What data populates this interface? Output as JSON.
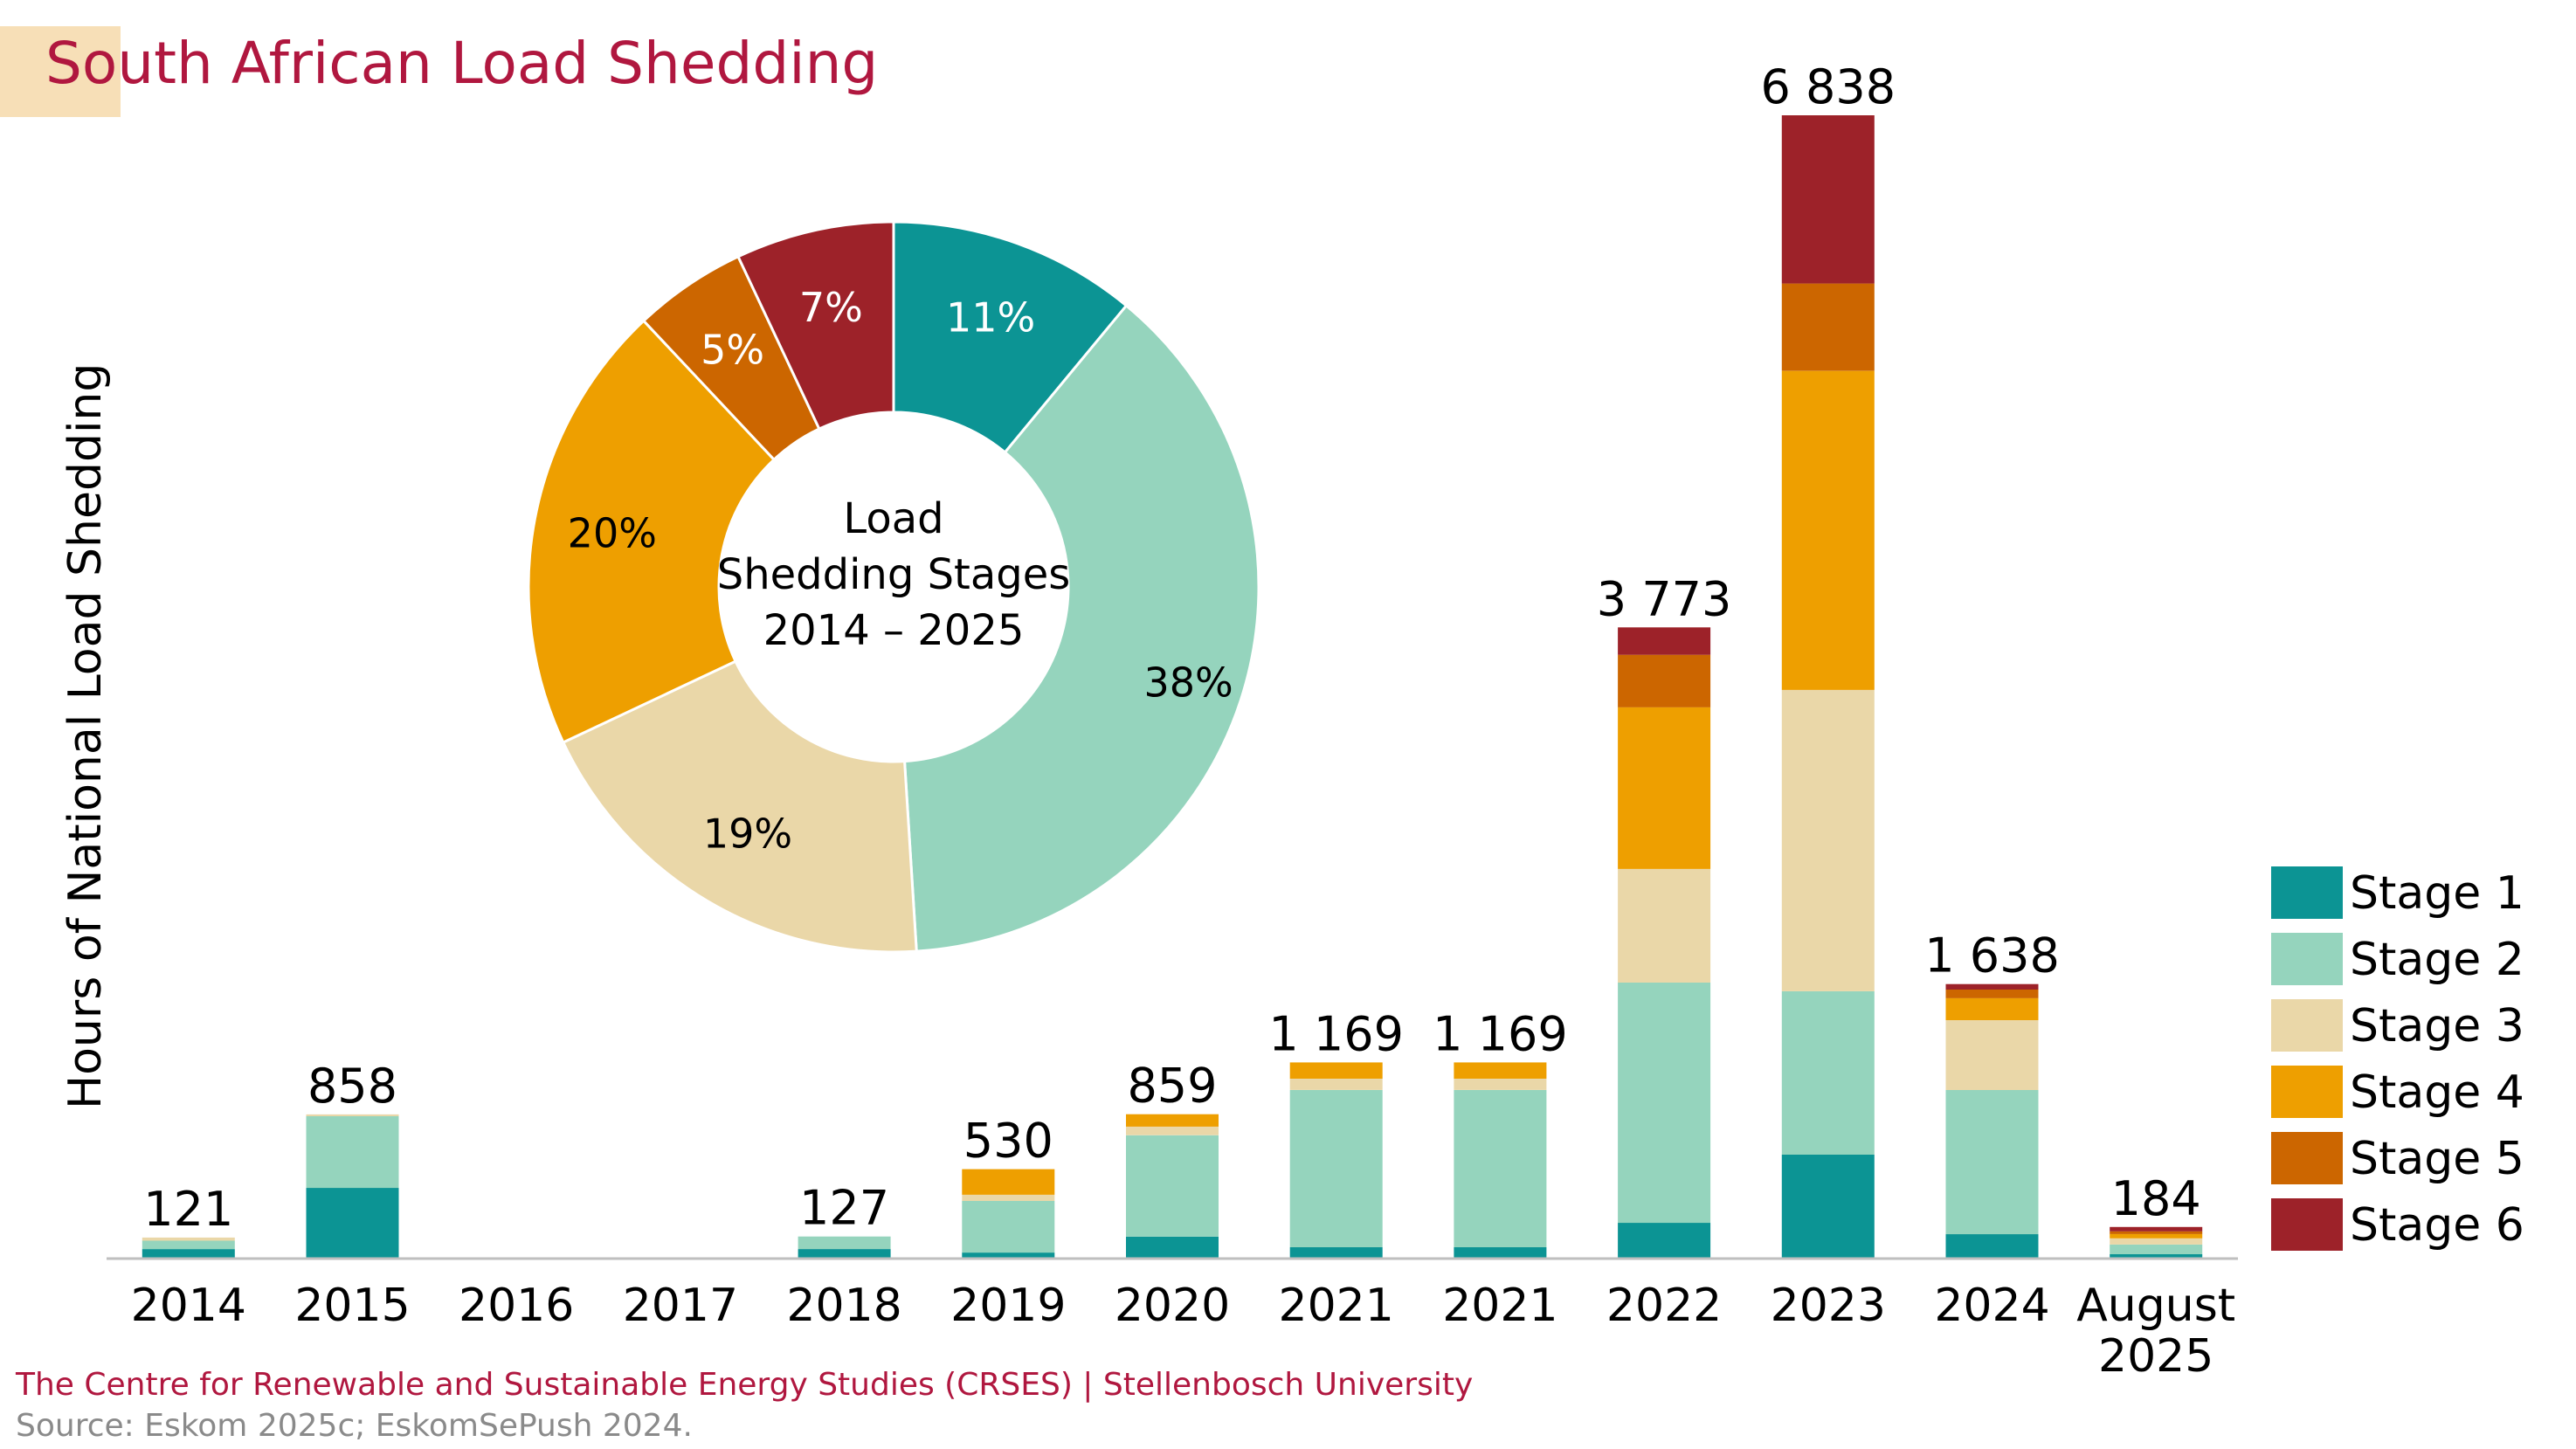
{
  "header": {
    "title": "South African Load Shedding"
  },
  "footer": {
    "credit": "The Centre for Renewable and Sustainable Energy Studies (CRSES) | Stellenbosch University",
    "source": "Source: Eskom 2025c; EskomSePush 2024."
  },
  "colors": {
    "title": "#b0173f",
    "stage1": "#0c9494",
    "stage2": "#95d4bd",
    "stage3": "#ead7a8",
    "stage4": "#ee9f00",
    "stage5": "#cc6600",
    "stage6": "#9d2229"
  },
  "chart_data": [
    {
      "type": "bar",
      "stacked": true,
      "title": "",
      "xlabel": "",
      "ylabel": "Hours of National Load Shedding",
      "ylim": [
        0,
        6838
      ],
      "grid": false,
      "legend_position": "right",
      "categories": [
        "2014",
        "2015",
        "2016",
        "2017",
        "2018",
        "2019",
        "2020",
        "2021",
        "2021",
        "2022",
        "2023",
        "2024",
        "August 2025"
      ],
      "category_lines": [
        [
          "2014"
        ],
        [
          "2015"
        ],
        [
          "2016"
        ],
        [
          "2017"
        ],
        [
          "2018"
        ],
        [
          "2019"
        ],
        [
          "2020"
        ],
        [
          "2021"
        ],
        [
          "2021"
        ],
        [
          "2022"
        ],
        [
          "2023"
        ],
        [
          "2024"
        ],
        [
          "August",
          "2025"
        ]
      ],
      "totals": [
        121,
        858,
        null,
        null,
        127,
        530,
        859,
        1169,
        1169,
        3773,
        6838,
        1638,
        184
      ],
      "total_labels": [
        "121",
        "858",
        "",
        "",
        "127",
        "530",
        "859",
        "1 169",
        "1 169",
        "3 773",
        "6 838",
        "1 638",
        "184"
      ],
      "series": [
        {
          "name": "Stage 1",
          "color": "#0c9494",
          "values": [
            52,
            418,
            0,
            0,
            52,
            31,
            126,
            63,
            63,
            209,
            617,
            141,
            21
          ]
        },
        {
          "name": "Stage 2",
          "color": "#95d4bd",
          "values": [
            50,
            429,
            0,
            0,
            75,
            309,
            607,
            941,
            941,
            1438,
            978,
            863,
            58
          ]
        },
        {
          "name": "Stage 3",
          "color": "#ead7a8",
          "values": [
            19,
            11,
            0,
            0,
            0,
            37,
            52,
            68,
            68,
            680,
            1804,
            418,
            37
          ]
        },
        {
          "name": "Stage 4",
          "color": "#ee9f00",
          "values": [
            0,
            0,
            0,
            0,
            0,
            153,
            74,
            97,
            97,
            968,
            1909,
            131,
            26
          ]
        },
        {
          "name": "Stage 5",
          "color": "#cc6600",
          "values": [
            0,
            0,
            0,
            0,
            0,
            0,
            0,
            0,
            0,
            314,
            523,
            52,
            16
          ]
        },
        {
          "name": "Stage 6",
          "color": "#9d2229",
          "values": [
            0,
            0,
            0,
            0,
            0,
            0,
            0,
            0,
            0,
            164,
            1007,
            33,
            26
          ]
        }
      ]
    },
    {
      "type": "pie",
      "donut": true,
      "title": "Load Shedding Stages 2014 – 2025",
      "center_lines": [
        "Load",
        "Shedding Stages",
        "2014 – 2025"
      ],
      "categories": [
        "Stage 1",
        "Stage 2",
        "Stage 3",
        "Stage 4",
        "Stage 5",
        "Stage 6"
      ],
      "values": [
        11,
        38,
        19,
        20,
        5,
        7
      ],
      "labels": [
        "11%",
        "38%",
        "19%",
        "20%",
        "5%",
        "7%"
      ],
      "label_colors": [
        "#ffffff",
        "#000000",
        "#000000",
        "#000000",
        "#ffffff",
        "#ffffff"
      ],
      "colors": [
        "#0c9494",
        "#95d4bd",
        "#ead7a8",
        "#ee9f00",
        "#cc6600",
        "#9d2229"
      ]
    }
  ]
}
